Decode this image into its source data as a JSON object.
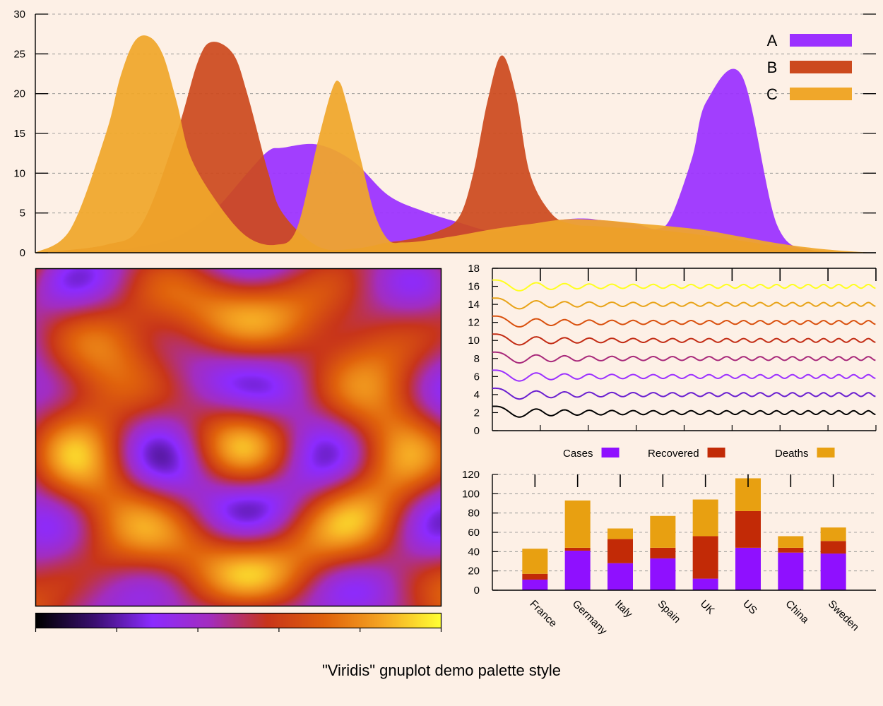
{
  "title": "\"Viridis\" gnuplot demo palette style",
  "palette": [
    "#000000",
    "#3b0f70",
    "#8c2bff",
    "#a32dbf",
    "#c8351a",
    "#e0620c",
    "#f5a623",
    "#ffff33"
  ],
  "chart_data": [
    {
      "type": "area",
      "ylim": [
        0,
        30
      ],
      "y_ticks": [
        "0",
        "5",
        "10",
        "15",
        "20",
        "25",
        "30"
      ],
      "grid": true,
      "legend_position": "top-right",
      "series": [
        {
          "name": "A",
          "color": "#9b30ff",
          "x": [
            0,
            50,
            100,
            150,
            200,
            250,
            300,
            330,
            350,
            400,
            450,
            500,
            550,
            600,
            650,
            700,
            750,
            780,
            800,
            850,
            880,
            900,
            930,
            950,
            1000,
            1050,
            1100,
            1150,
            1190
          ],
          "y": [
            0,
            0.1,
            0.3,
            0.8,
            2,
            5,
            10,
            12.8,
            13.2,
            13.6,
            11.5,
            7.2,
            5.2,
            3.8,
            2.7,
            3.6,
            4.2,
            4.3,
            4.1,
            3.6,
            3.0,
            4.5,
            12,
            19,
            22.3,
            3.5,
            0.3,
            0.05,
            0
          ]
        },
        {
          "name": "B",
          "color": "#cc4a1e",
          "x": [
            0,
            100,
            150,
            200,
            230,
            250,
            280,
            300,
            330,
            350,
            400,
            450,
            500,
            530,
            570,
            600,
            620,
            640,
            660,
            680,
            700,
            730,
            760,
            800,
            900,
            1000,
            1050,
            1100,
            1150,
            1190
          ],
          "y": [
            0,
            1,
            3.5,
            15,
            24,
            26.5,
            25,
            20,
            10,
            5,
            0.8,
            0.5,
            1.3,
            1.7,
            2.7,
            4.5,
            10,
            19,
            24.8,
            20,
            10,
            5,
            3.6,
            3.3,
            2.7,
            1.5,
            0.8,
            0.3,
            0.05,
            0
          ]
        },
        {
          "name": "C",
          "color": "#f0a72a",
          "x": [
            0,
            50,
            100,
            120,
            140,
            160,
            180,
            200,
            220,
            260,
            300,
            340,
            370,
            400,
            420,
            430,
            440,
            460,
            480,
            500,
            520,
            550,
            600,
            650,
            700,
            750,
            800,
            850,
            900,
            950,
            1000,
            1050,
            1100,
            1150,
            1190
          ],
          "y": [
            0,
            3,
            15,
            22,
            26.5,
            27.2,
            25,
            19,
            12,
            6,
            2,
            1,
            3,
            14,
            20.5,
            21.5,
            19,
            12,
            5,
            1.6,
            1.3,
            1.5,
            2.2,
            3,
            3.6,
            4.2,
            4.1,
            3.7,
            3.3,
            2.8,
            2,
            1.2,
            0.6,
            0.2,
            0
          ]
        }
      ]
    },
    {
      "type": "heatmap",
      "colorbar_ticks": 6,
      "pattern": "concentric rings with tiled sinusoidal lobes"
    },
    {
      "type": "line",
      "ylim": [
        0,
        18
      ],
      "y_ticks": [
        "0",
        "2",
        "4",
        "6",
        "8",
        "10",
        "12",
        "14",
        "16",
        "18"
      ],
      "x_ticks": 8,
      "series": [
        {
          "offset": 2,
          "color": "#000000"
        },
        {
          "offset": 4,
          "color": "#6a1fd0"
        },
        {
          "offset": 6,
          "color": "#9b30ff"
        },
        {
          "offset": 8,
          "color": "#a8287a"
        },
        {
          "offset": 10,
          "color": "#c22a12"
        },
        {
          "offset": 12,
          "color": "#d9500d"
        },
        {
          "offset": 14,
          "color": "#e8a317"
        },
        {
          "offset": 16,
          "color": "#ffff1f"
        }
      ]
    },
    {
      "type": "bar",
      "stacked": true,
      "categories": [
        "France",
        "Germany",
        "Italy",
        "Spain",
        "UK",
        "US",
        "China",
        "Sweden"
      ],
      "ylim": [
        0,
        120
      ],
      "y_ticks": [
        "0",
        "20",
        "40",
        "60",
        "80",
        "100",
        "120"
      ],
      "legend_position": "top",
      "series": [
        {
          "name": "Cases",
          "color": "#8f10ff",
          "values": [
            11,
            41,
            28,
            33,
            12,
            44,
            39,
            38
          ]
        },
        {
          "name": "Recovered",
          "color": "#c22a06",
          "values": [
            6,
            3,
            25,
            11,
            44,
            38,
            5,
            13
          ]
        },
        {
          "name": "Deaths",
          "color": "#e8a011",
          "values": [
            26,
            49,
            11,
            33,
            38,
            34,
            12,
            14
          ]
        }
      ]
    }
  ]
}
